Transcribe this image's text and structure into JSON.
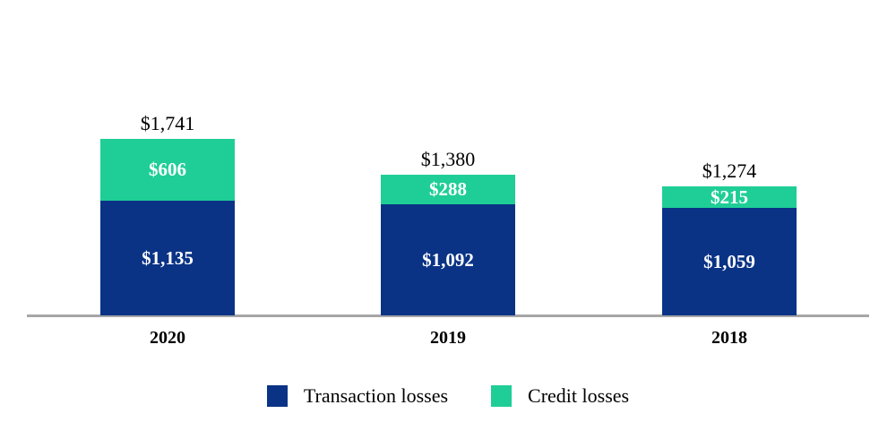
{
  "chart_data": {
    "type": "bar",
    "stacked": true,
    "title": "",
    "xlabel": "",
    "ylabel": "",
    "grid": false,
    "legend_position": "bottom",
    "categories": [
      "2020",
      "2019",
      "2018"
    ],
    "series": [
      {
        "name": "Transaction losses",
        "color": "#0A3386",
        "values": [
          1135,
          1092,
          1059
        ],
        "labels": [
          "$1,135",
          "$1,092",
          "$1,059"
        ],
        "label_color": "#ffffff"
      },
      {
        "name": "Credit losses",
        "color": "#1FCE96",
        "values": [
          606,
          288,
          215
        ],
        "labels": [
          "$606",
          "$288",
          "$215"
        ],
        "label_color": "#ffffff"
      }
    ],
    "totals": [
      1741,
      1380,
      1274
    ],
    "total_labels": [
      "$1,741",
      "$1,380",
      "$1,274"
    ],
    "ylim": [
      0,
      1741
    ],
    "axis_line_color": "#A6A6A6"
  },
  "legend": {
    "items": [
      {
        "label": "Transaction losses",
        "color": "#0A3386"
      },
      {
        "label": "Credit losses",
        "color": "#1FCE96"
      }
    ]
  }
}
